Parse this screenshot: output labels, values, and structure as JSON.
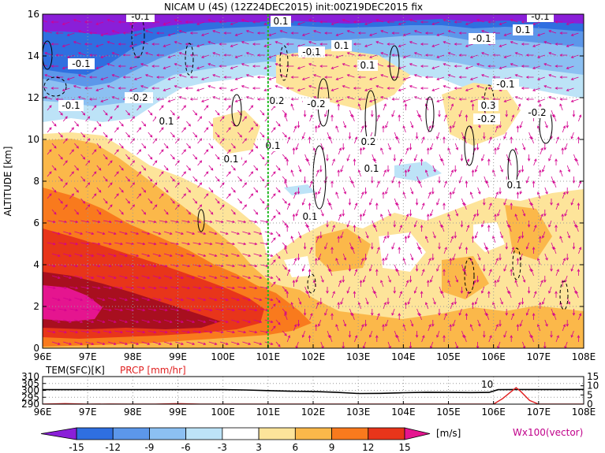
{
  "title": "NICAM U (4S) (12Z24DEC2015) init:00Z19DEC2015 fix",
  "colors": {
    "c_m15": "#8a1fd8",
    "c_m12": "#2f6fe0",
    "c_m9": "#5c97ea",
    "c_m6": "#8cc0f2",
    "c_m3": "#bde3f7",
    "c_0": "#ffffff",
    "c_3": "#fde49a",
    "c_6": "#fbb84a",
    "c_9": "#f97a1d",
    "c_12": "#e8351a",
    "c_15": "#a80f1f",
    "c_hi": "#e5158f",
    "vector": "#d4008f",
    "marker": "#22bb22",
    "prcp": "#e02020"
  },
  "chart_data": [
    {
      "type": "heatmap",
      "title": "NICAM U (4S) (12Z24DEC2015) init:00Z19DEC2015 fix",
      "ylabel": "ALTITUDE [km]",
      "x_ticks": [
        "96E",
        "97E",
        "98E",
        "99E",
        "100E",
        "101E",
        "102E",
        "103E",
        "104E",
        "105E",
        "106E",
        "107E",
        "108E"
      ],
      "x_range": [
        96,
        108
      ],
      "y_ticks": [
        "0",
        "2",
        "4",
        "6",
        "8",
        "10",
        "12",
        "14",
        "16"
      ],
      "y_range": [
        0,
        16
      ],
      "grid": true,
      "marker_longitude": 101,
      "contour_labels": [
        "-0.1",
        "-0.1",
        "-0.1",
        "-0.1",
        "-0.1",
        "-0.1",
        "-0.1",
        "-0.2",
        "-0.2",
        "-0.2",
        "-0.2",
        "0.1",
        "0.1",
        "0.1",
        "0.1",
        "0.1",
        "0.1",
        "0.1",
        "0.1",
        "0.1",
        "0.1",
        "0.2",
        "0.2",
        "0.3"
      ],
      "vector_label": "Wx100(vector)"
    },
    {
      "type": "line",
      "series": [
        {
          "name": "TEM(SFC)[K]",
          "x": [
            96,
            97,
            98,
            99,
            100,
            100.5,
            101,
            101.5,
            102,
            102.5,
            103,
            103.5,
            104,
            104.5,
            105,
            105.5,
            105.9,
            106.1,
            106.5,
            107,
            107.5,
            108
          ],
          "values": [
            300.5,
            300.5,
            300.5,
            300.5,
            300.5,
            300.3,
            299.8,
            299.4,
            299.2,
            298.6,
            297.7,
            297.8,
            298.3,
            298.6,
            298.5,
            298.4,
            298.5,
            300.5,
            300.6,
            300.6,
            300.6,
            300.7
          ]
        },
        {
          "name": "PRCP [mm/hr]",
          "x": [
            96,
            96.5,
            97,
            97.5,
            98,
            98.5,
            99,
            99.5,
            100,
            104,
            105,
            106,
            106.2,
            106.4,
            106.5,
            106.6,
            106.8,
            107,
            108
          ],
          "values": [
            0,
            0.3,
            0,
            0.1,
            0,
            0,
            0.3,
            0,
            0,
            0,
            0,
            0,
            3,
            7,
            9,
            7,
            2,
            0,
            0
          ]
        }
      ],
      "y_ticks_left": [
        "290",
        "295",
        "300",
        "305",
        "310"
      ],
      "ylim_left": [
        290,
        310
      ],
      "y_ticks_right": [
        "0",
        "5",
        "10",
        "15"
      ],
      "ylim_right": [
        0,
        15
      ],
      "annotation": "10",
      "x_ticks": [
        "96E",
        "97E",
        "98E",
        "99E",
        "100E",
        "101E",
        "102E",
        "103E",
        "104E",
        "105E",
        "106E",
        "107E",
        "108E"
      ]
    }
  ],
  "colorbar": {
    "ticks": [
      "-15",
      "-12",
      "-9",
      "-6",
      "-3",
      "3",
      "6",
      "9",
      "12",
      "15"
    ],
    "units": "[m/s]"
  }
}
